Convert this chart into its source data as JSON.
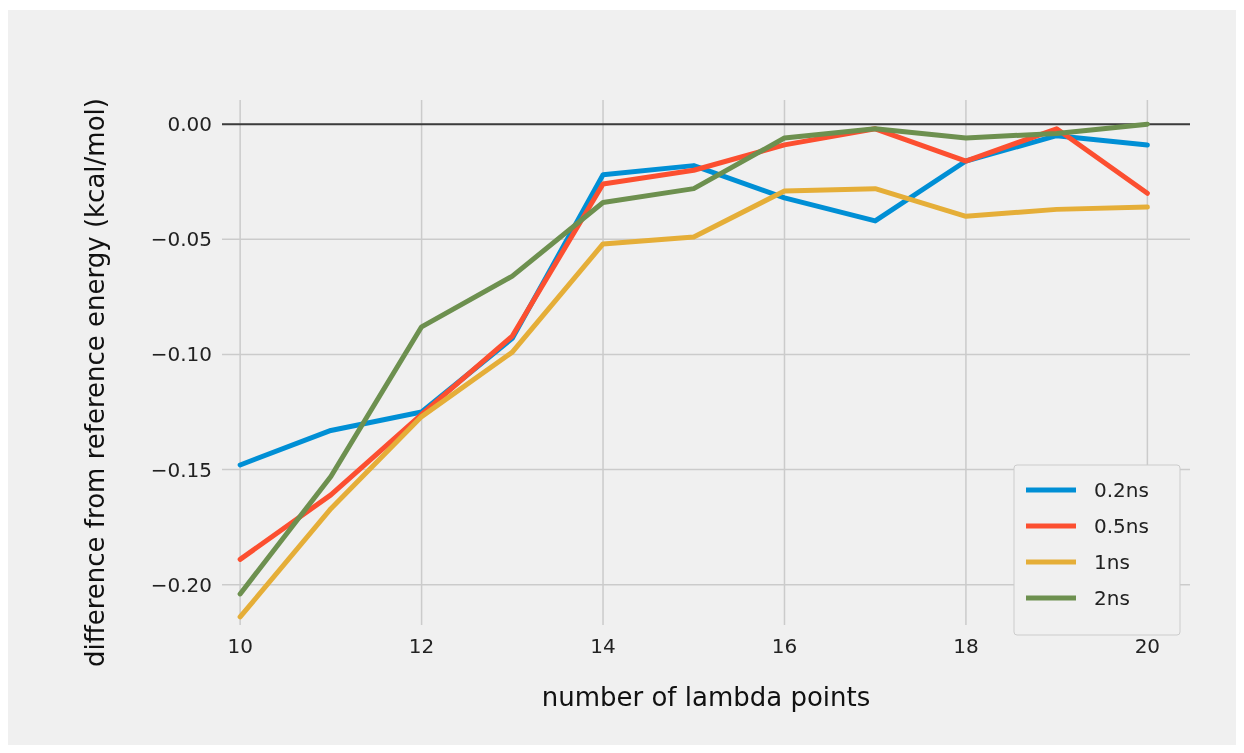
{
  "chart_data": {
    "type": "line",
    "xlabel": "number of lambda points",
    "ylabel": "difference from reference energy (kcal/mol)",
    "x": [
      10,
      11,
      12,
      13,
      14,
      15,
      16,
      17,
      18,
      19,
      20
    ],
    "series": [
      {
        "name": "0.2ns",
        "color": "#008fd5",
        "values": [
          -0.148,
          -0.133,
          -0.125,
          -0.093,
          -0.022,
          -0.018,
          -0.032,
          -0.042,
          -0.016,
          -0.005,
          -0.009
        ]
      },
      {
        "name": "0.5ns",
        "color": "#fc4f30",
        "values": [
          -0.189,
          -0.161,
          -0.126,
          -0.092,
          -0.026,
          -0.02,
          -0.009,
          -0.002,
          -0.016,
          -0.002,
          -0.03
        ]
      },
      {
        "name": "1ns",
        "color": "#e5ae38",
        "values": [
          -0.214,
          -0.167,
          -0.127,
          -0.099,
          -0.052,
          -0.049,
          -0.029,
          -0.028,
          -0.04,
          -0.037,
          -0.036
        ]
      },
      {
        "name": "2ns",
        "color": "#6d904f",
        "values": [
          -0.204,
          -0.153,
          -0.088,
          -0.066,
          -0.034,
          -0.028,
          -0.006,
          -0.002,
          -0.006,
          -0.004,
          0.0
        ]
      }
    ],
    "xlim": [
      9.8,
      20.47
    ],
    "ylim": [
      -0.2175,
      0.0105
    ],
    "xticks": [
      10,
      12,
      14,
      16,
      18,
      20
    ],
    "yticks": [
      {
        "value": 0,
        "label": "0.00"
      },
      {
        "value": -0.05,
        "label": "−0.05"
      },
      {
        "value": -0.1,
        "label": "−0.10"
      },
      {
        "value": -0.15,
        "label": "−0.15"
      },
      {
        "value": -0.2,
        "label": "−0.20"
      }
    ],
    "ref_lines": [
      {
        "axis": "y",
        "value": 0,
        "color": "#3c3c3c"
      }
    ],
    "grid": true,
    "legend": "bottom right",
    "marker": "none",
    "line_style": "solid"
  }
}
